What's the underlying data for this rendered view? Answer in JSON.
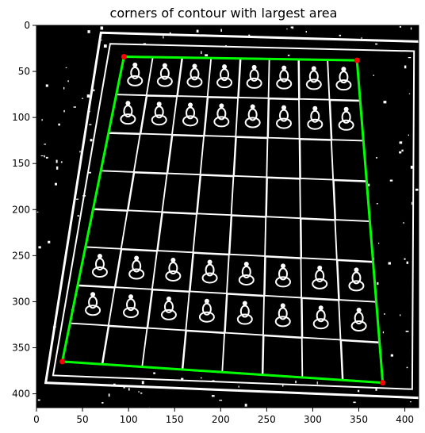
{
  "chart_data": {
    "type": "image",
    "title": "corners of contour with largest area",
    "xlabel": "",
    "ylabel": "",
    "xlim": [
      0,
      415
    ],
    "ylim": [
      415,
      0
    ],
    "x_ticks": [
      0,
      50,
      100,
      150,
      200,
      250,
      300,
      350,
      400
    ],
    "y_ticks": [
      0,
      50,
      100,
      150,
      200,
      250,
      300,
      350,
      400
    ],
    "grid": false,
    "image_content": "binary thresholded photo of a chessboard with pieces",
    "contour": {
      "color": "#00ff00",
      "points": [
        [
          95,
          34
        ],
        [
          348,
          38
        ],
        [
          376,
          388
        ],
        [
          28,
          365
        ]
      ]
    },
    "corners": {
      "color": "#ff0000",
      "points": [
        [
          95,
          34
        ],
        [
          348,
          38
        ],
        [
          376,
          388
        ],
        [
          28,
          365
        ]
      ]
    }
  }
}
